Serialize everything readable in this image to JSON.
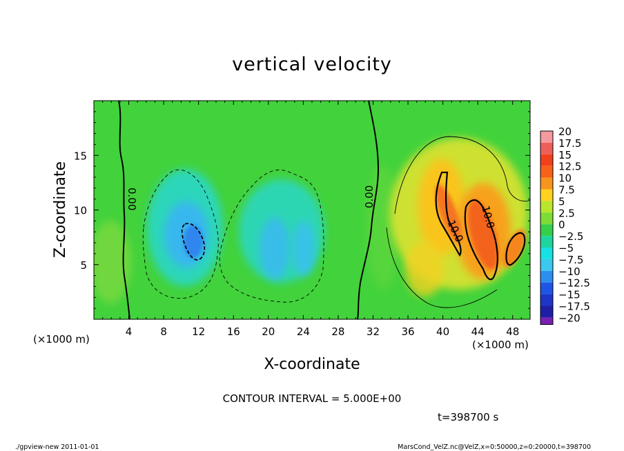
{
  "chart_data": {
    "type": "heatmap",
    "title": "vertical velocity",
    "xlabel": "X-coordinate",
    "ylabel": "Z-coordinate",
    "x_unit_left": "(×1000 m)",
    "x_unit_right": "(×1000 m)",
    "xlim": [
      0,
      50
    ],
    "ylim": [
      0,
      20
    ],
    "x_ticks": [
      4,
      8,
      12,
      16,
      20,
      24,
      28,
      32,
      36,
      40,
      44,
      48
    ],
    "y_ticks": [
      5,
      10,
      15
    ],
    "colorbar_levels": [
      "20",
      "17.5",
      "15",
      "12.5",
      "10",
      "7.5",
      "5",
      "2.5",
      "0",
      "−2.5",
      "−5",
      "−7.5",
      "−10",
      "−12.5",
      "−15",
      "−17.5",
      "−20"
    ],
    "colorbar_colors": [
      "#f59aa0",
      "#ef5f5a",
      "#f2401c",
      "#f8611a",
      "#f7941d",
      "#ffd21f",
      "#b8e62c",
      "#7ddc36",
      "#35cf4a",
      "#1ed69d",
      "#17e1e3",
      "#3ac7f0",
      "#2b8ff0",
      "#1f55e6",
      "#1d35c8",
      "#1e1fa6",
      "#7a1fb4"
    ],
    "contour_labels": [
      "0.00",
      "0.00",
      "10.0",
      "10.0"
    ],
    "contour_interval": "CONTOUR INTERVAL = 5.000E+00",
    "time_label": "t=398700 s",
    "background_color": "#42d23c"
  },
  "footer": {
    "left": "./gpview-new  2011-01-01",
    "right": "MarsCond_VelZ.nc@VelZ,x=0:50000,z=0:20000,t=398700"
  }
}
